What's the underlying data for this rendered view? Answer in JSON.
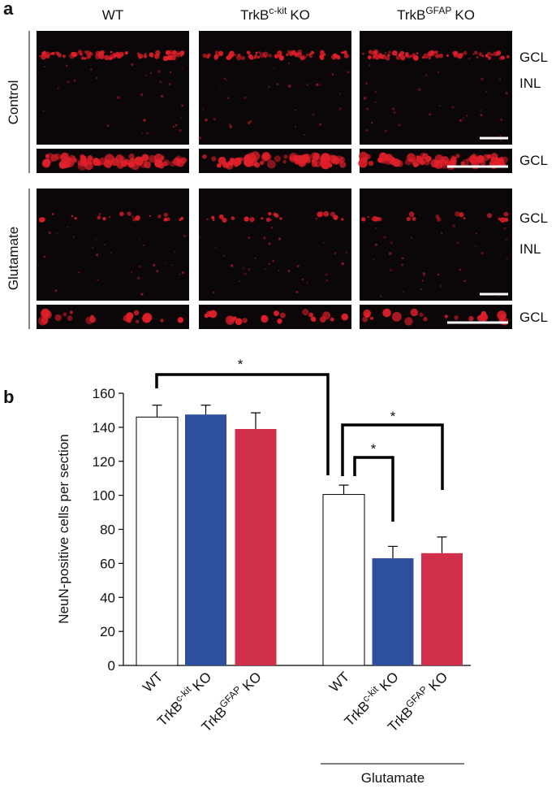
{
  "panel_a": {
    "label": "a",
    "columns": [
      "WT",
      [
        "TrkB",
        "c-kit",
        "KO"
      ],
      [
        "TrkB",
        "GFAP",
        "KO"
      ]
    ],
    "rows": [
      "Control",
      "Glutamate"
    ],
    "layer_labels": [
      "GCL",
      "INL",
      "GCL",
      "GCL",
      "INL",
      "GCL"
    ]
  },
  "chart_data": {
    "type": "bar",
    "panel_label": "b",
    "ylabel": "NeuN-positive cells per section",
    "categories": [
      "WT",
      [
        "TrkB",
        "c-kit",
        "KO"
      ],
      [
        "TrkB",
        "GFAP",
        "KO"
      ],
      "WT",
      [
        "TrkB",
        "c-kit",
        "KO"
      ],
      [
        "TrkB",
        "GFAP",
        "KO"
      ]
    ],
    "values": [
      146,
      147.5,
      139,
      100.5,
      63,
      66
    ],
    "errors": [
      7,
      5.5,
      9.5,
      5.5,
      7,
      9.5
    ],
    "colors": [
      "#ffffff",
      "#2e4f9e",
      "#d0304a",
      "#ffffff",
      "#2e4f9e",
      "#d0304a"
    ],
    "group_label": "Glutamate",
    "annotations": [
      "*",
      "*",
      "*"
    ],
    "ylim": [
      0,
      160
    ],
    "yticks": [
      0,
      20,
      40,
      60,
      80,
      100,
      120,
      140,
      160
    ]
  }
}
